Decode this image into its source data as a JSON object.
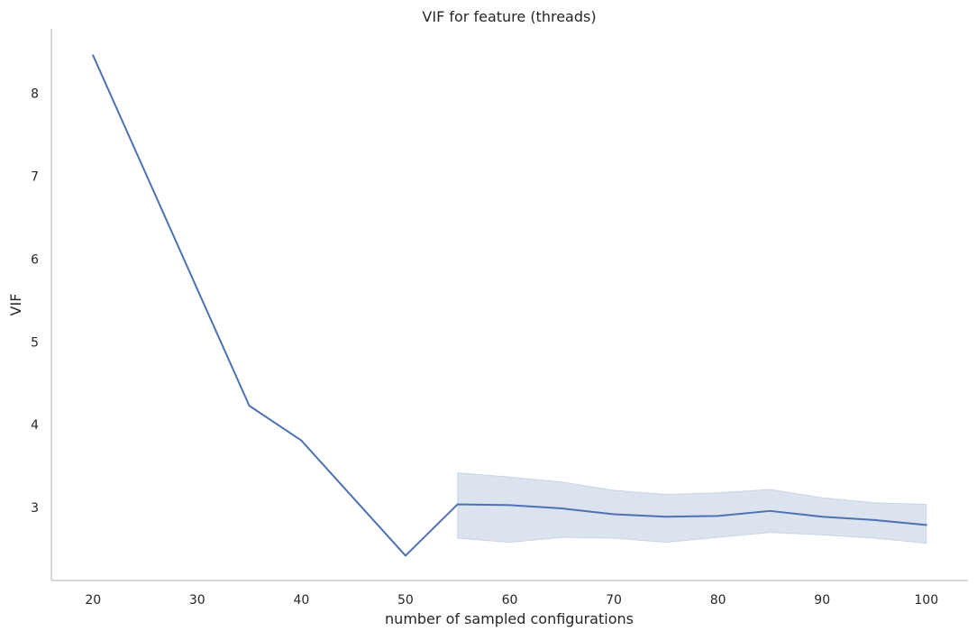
{
  "chart_data": {
    "type": "line",
    "title": "VIF for feature (threads)",
    "xlabel": "number of sampled configurations",
    "ylabel": "VIF",
    "xlim": [
      16.0,
      104.0
    ],
    "ylim": [
      2.12,
      8.78
    ],
    "xticks": [
      20,
      30,
      40,
      50,
      60,
      70,
      80,
      90,
      100
    ],
    "yticks": [
      3,
      4,
      5,
      6,
      7,
      8
    ],
    "grid": false,
    "legend": "none",
    "series": [
      {
        "x": [
          20,
          35,
          40,
          50,
          55,
          60,
          65,
          70,
          75,
          80,
          85,
          90,
          95,
          100
        ],
        "y": [
          8.46,
          4.23,
          3.81,
          2.42,
          3.04,
          3.03,
          2.99,
          2.92,
          2.89,
          2.9,
          2.96,
          2.89,
          2.85,
          2.79
        ],
        "ci_x": [
          55,
          60,
          65,
          70,
          75,
          80,
          85,
          90,
          95,
          100
        ],
        "ci_lower": [
          2.63,
          2.58,
          2.64,
          2.63,
          2.58,
          2.64,
          2.7,
          2.67,
          2.63,
          2.57
        ],
        "ci_upper": [
          3.42,
          3.37,
          3.31,
          3.21,
          3.16,
          3.18,
          3.22,
          3.12,
          3.06,
          3.04
        ],
        "color": "#4c72b0"
      }
    ]
  }
}
